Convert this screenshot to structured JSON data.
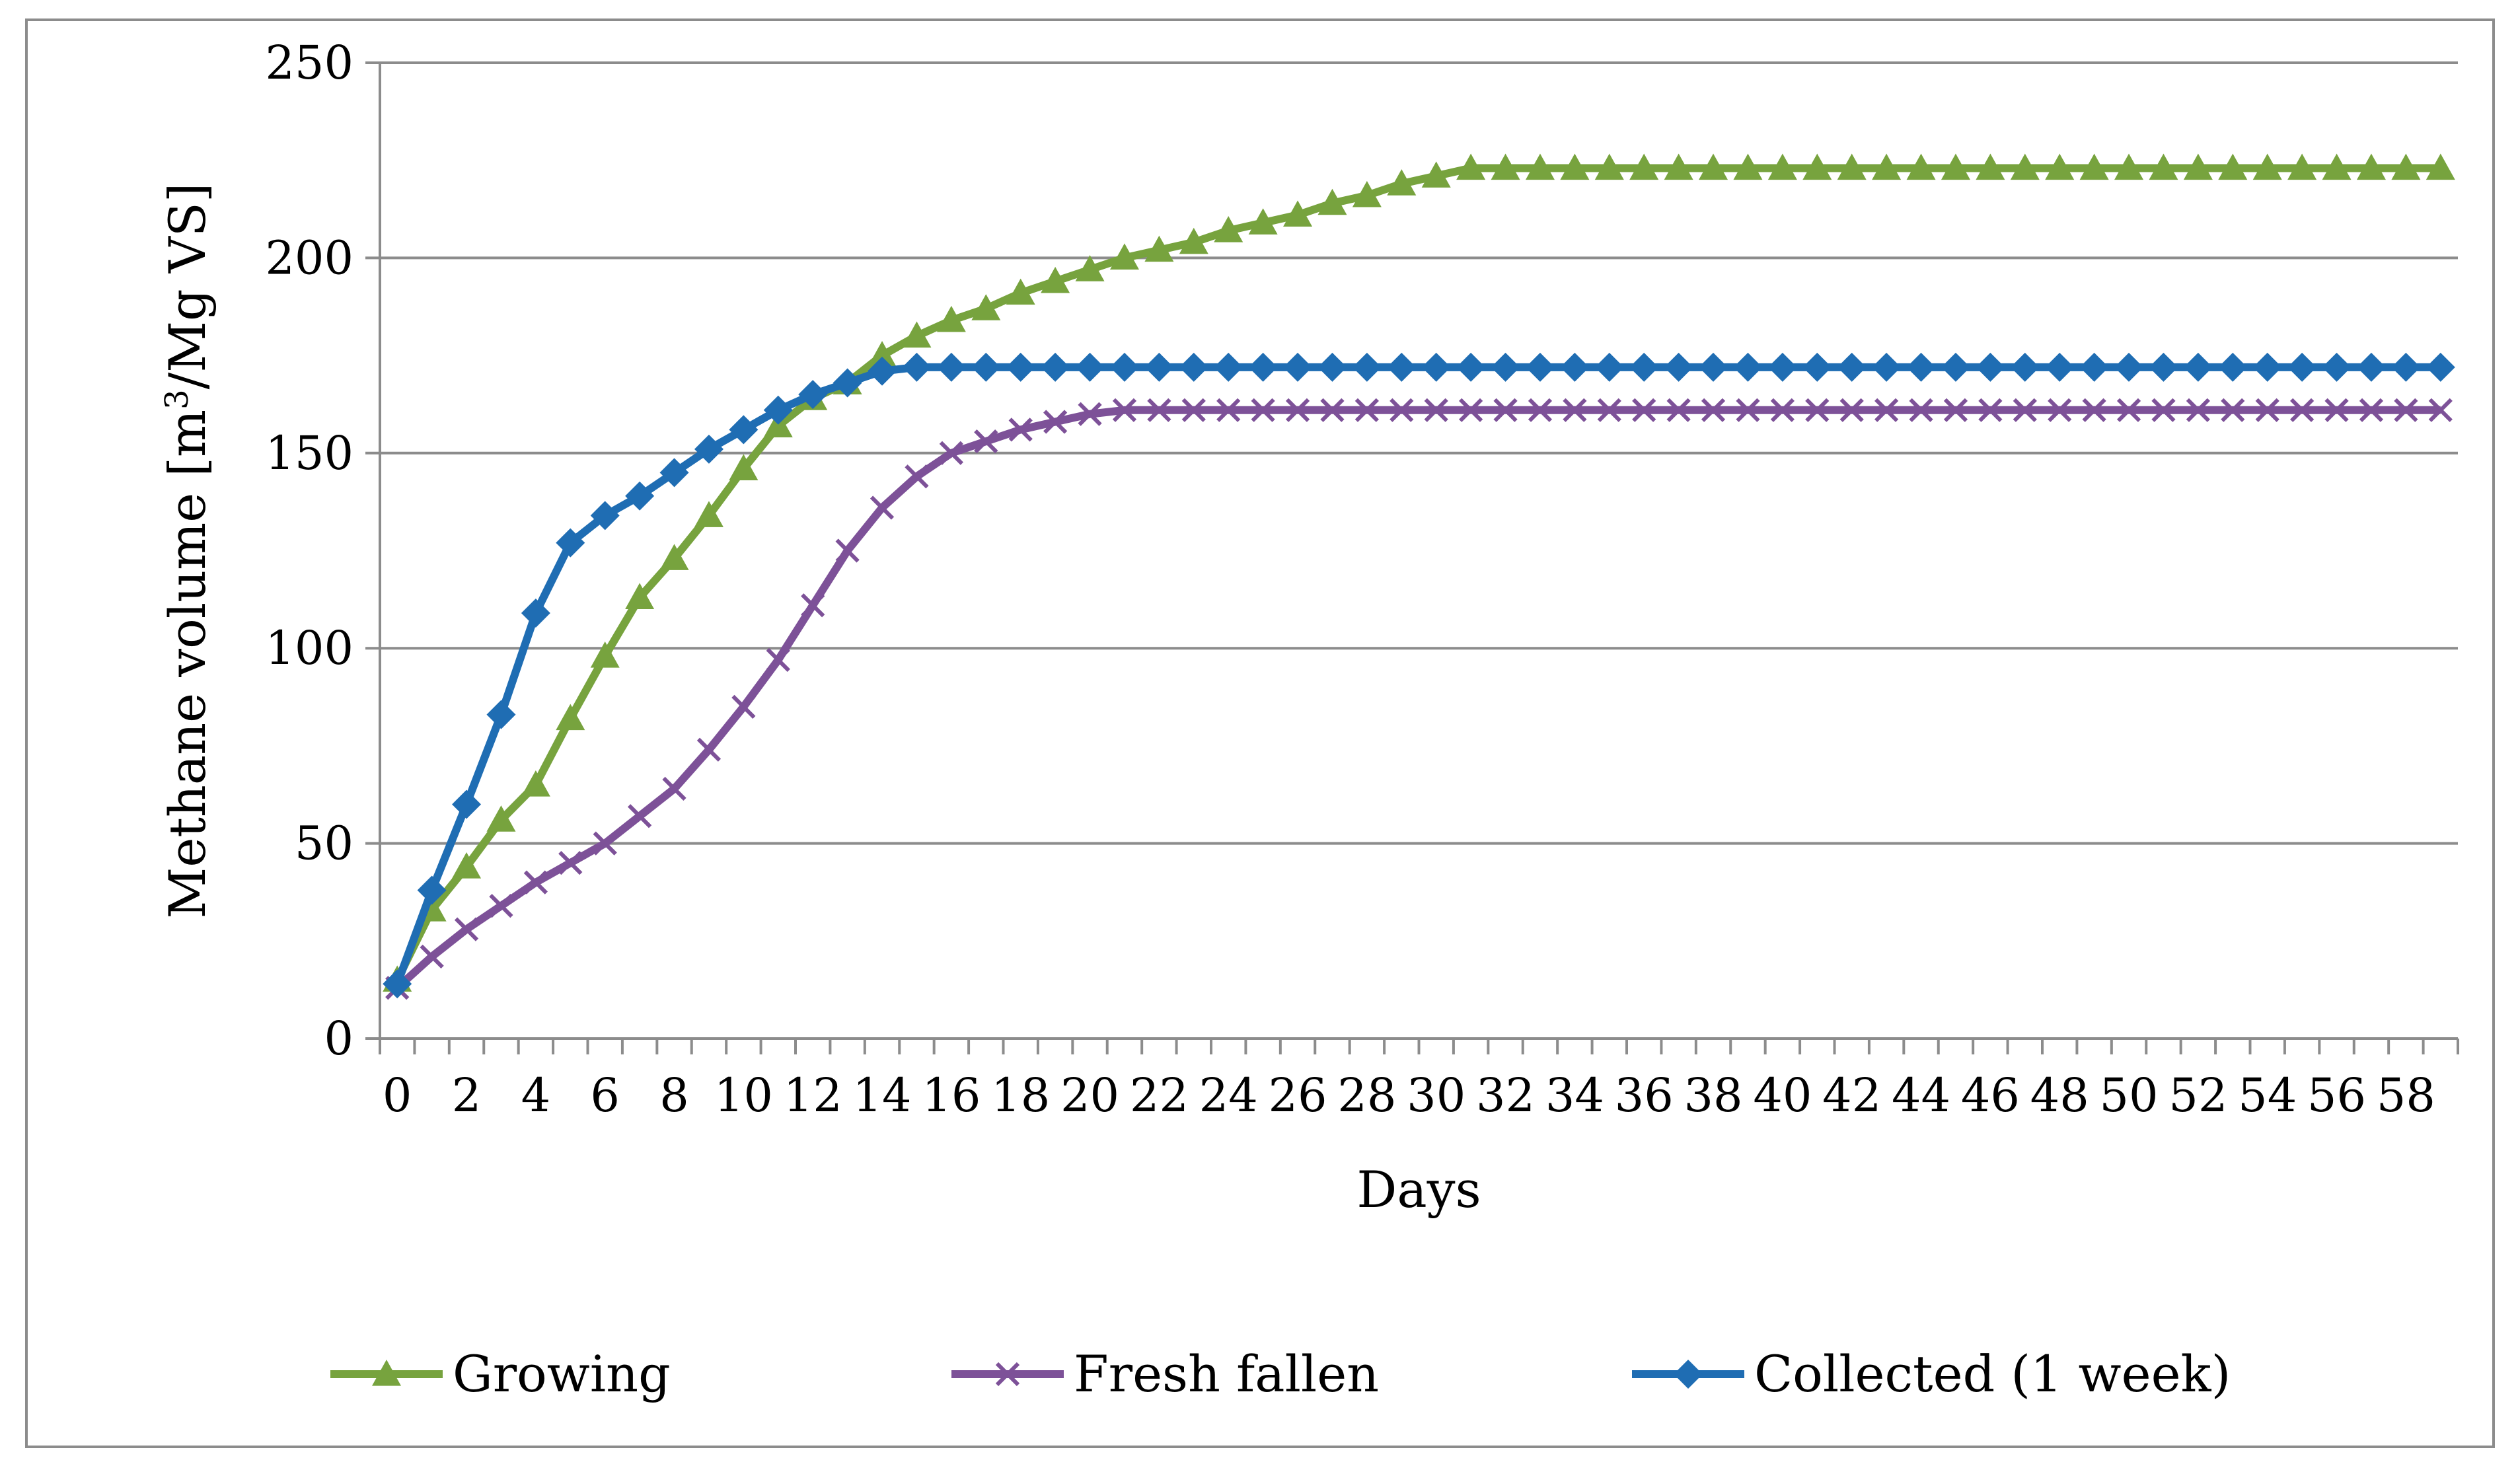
{
  "chart_data": {
    "type": "line",
    "title": "",
    "xlabel": "Days",
    "ylabel": "Methane volume [m3/Mg VS]",
    "ylabel_parts": {
      "before": "Methane volume [m",
      "sup": "3",
      "after": "/Mg VS]"
    },
    "xlim": [
      0,
      59
    ],
    "ylim": [
      0,
      250
    ],
    "yticks": [
      0,
      50,
      100,
      150,
      200,
      250
    ],
    "xticks": [
      0,
      2,
      4,
      6,
      8,
      10,
      12,
      14,
      16,
      18,
      20,
      22,
      24,
      26,
      28,
      30,
      32,
      34,
      36,
      38,
      40,
      42,
      44,
      46,
      48,
      50,
      52,
      54,
      56,
      58
    ],
    "grid": true,
    "legend_position": "bottom",
    "x": [
      0,
      1,
      2,
      3,
      4,
      5,
      6,
      7,
      8,
      9,
      10,
      11,
      12,
      13,
      14,
      15,
      16,
      17,
      18,
      19,
      20,
      21,
      22,
      23,
      24,
      25,
      26,
      27,
      28,
      29,
      30,
      31,
      32,
      33,
      34,
      35,
      36,
      37,
      38,
      39,
      40,
      41,
      42,
      43,
      44,
      45,
      46,
      47,
      48,
      49,
      50,
      51,
      52,
      53,
      54,
      55,
      56,
      57,
      58,
      59
    ],
    "series": [
      {
        "name": "Growing",
        "color": "#77a33e",
        "marker": "triangle",
        "values": [
          15,
          33,
          44,
          56,
          65,
          82,
          98,
          113,
          123,
          134,
          146,
          157,
          164,
          168,
          175,
          180,
          184,
          187,
          191,
          194,
          197,
          200,
          202,
          204,
          207,
          209,
          211,
          214,
          216,
          219,
          221,
          223,
          223,
          223,
          223,
          223,
          223,
          223,
          223,
          223,
          223,
          223,
          223,
          223,
          223,
          223,
          223,
          223,
          223,
          223,
          223,
          223,
          223,
          223,
          223,
          223,
          223,
          223,
          223,
          223
        ]
      },
      {
        "name": "Fresh fallen",
        "color": "#7d5198",
        "marker": "x",
        "values": [
          13,
          21,
          28,
          34,
          40,
          45,
          50,
          57,
          64,
          74,
          85,
          97,
          111,
          125,
          136,
          144,
          150,
          153,
          156,
          158,
          160,
          161,
          161,
          161,
          161,
          161,
          161,
          161,
          161,
          161,
          161,
          161,
          161,
          161,
          161,
          161,
          161,
          161,
          161,
          161,
          161,
          161,
          161,
          161,
          161,
          161,
          161,
          161,
          161,
          161,
          161,
          161,
          161,
          161,
          161,
          161,
          161,
          161,
          161,
          161
        ]
      },
      {
        "name": "Collected (1 week)",
        "color": "#1f6db3",
        "marker": "diamond",
        "values": [
          14,
          38,
          60,
          83,
          109,
          127,
          134,
          139,
          145,
          151,
          156,
          161,
          165,
          168,
          171,
          172,
          172,
          172,
          172,
          172,
          172,
          172,
          172,
          172,
          172,
          172,
          172,
          172,
          172,
          172,
          172,
          172,
          172,
          172,
          172,
          172,
          172,
          172,
          172,
          172,
          172,
          172,
          172,
          172,
          172,
          172,
          172,
          172,
          172,
          172,
          172,
          172,
          172,
          172,
          172,
          172,
          172,
          172,
          172,
          172
        ]
      }
    ]
  }
}
